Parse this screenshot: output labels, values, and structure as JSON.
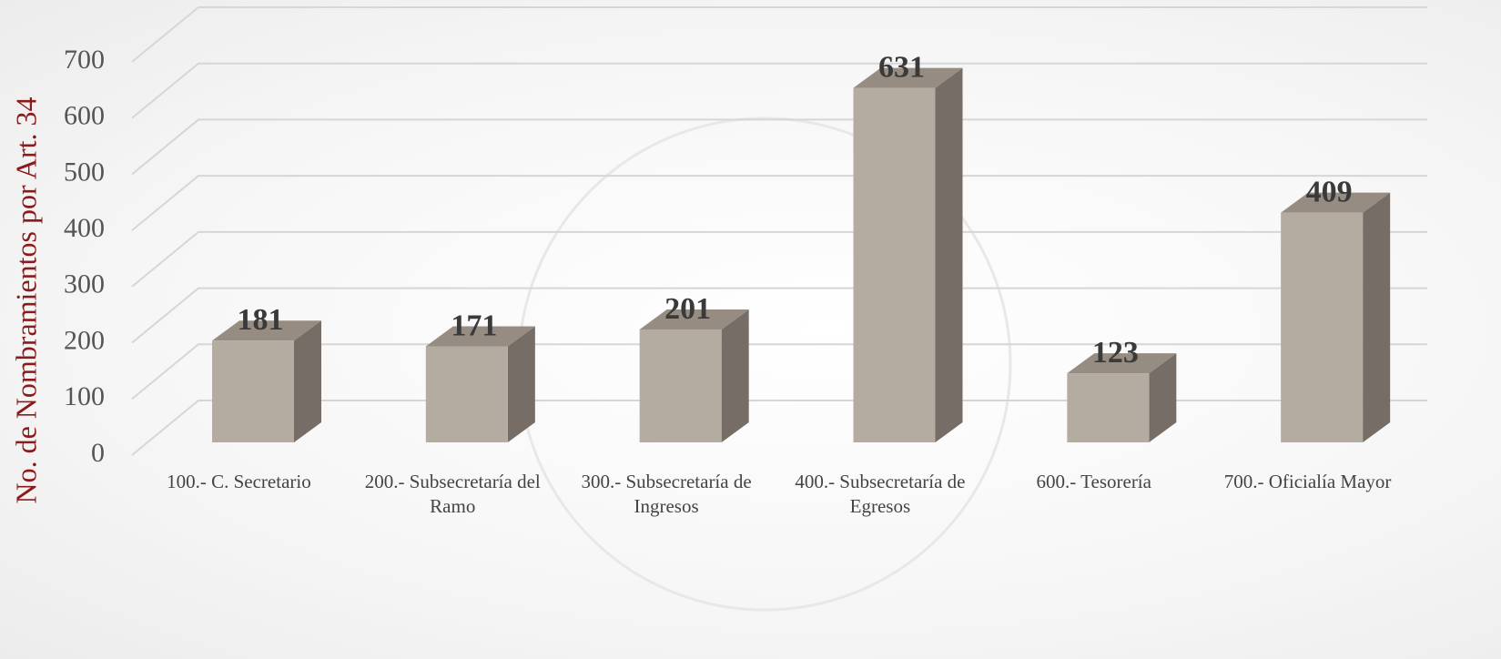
{
  "chart_data": {
    "type": "bar",
    "y_label": "No. de Nombramientos por Art. 34",
    "categories": [
      "100.- C. Secretario",
      "200.- Subsecretaría del Ramo",
      "300.- Subsecretaría de Ingresos",
      "400.- Subsecretaría de Egresos",
      "600.- Tesorería",
      "700.- Oficialía Mayor"
    ],
    "values": [
      181,
      171,
      201,
      631,
      123,
      409
    ],
    "color": "#b5aca1",
    "ylim": [
      0,
      700
    ],
    "yticks": [
      0,
      100,
      200,
      300,
      400,
      500,
      600,
      700
    ],
    "grid": true
  }
}
